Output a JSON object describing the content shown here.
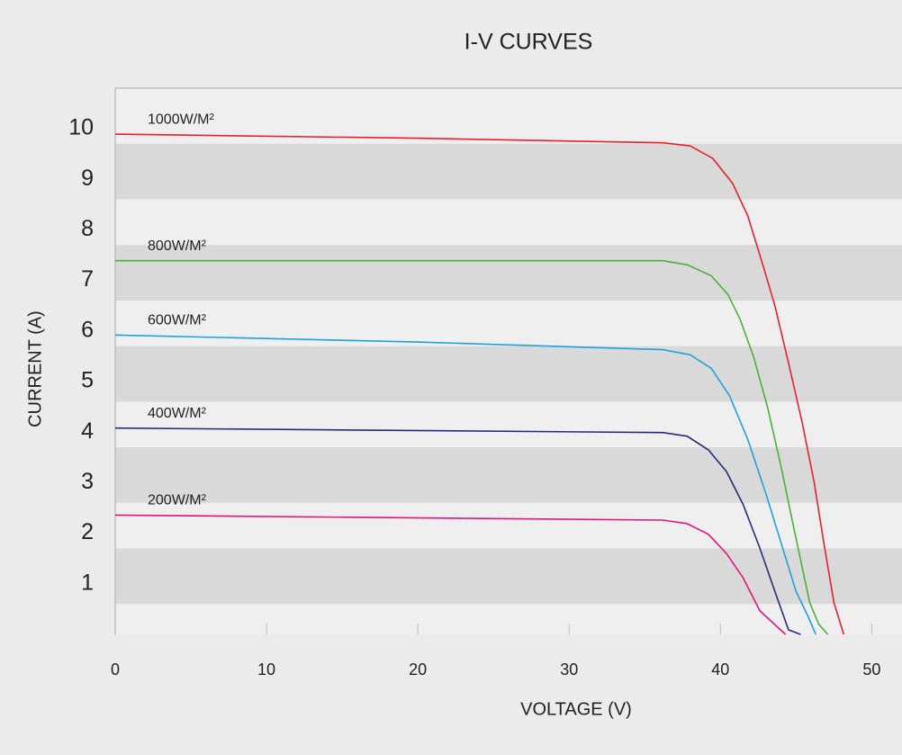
{
  "chart_data": {
    "type": "line",
    "title": "I-V CURVES",
    "x_label": "VOLTAGE (V)",
    "y_label": "CURRENT (A)",
    "xlim": [
      0,
      52
    ],
    "xticks": [
      0,
      10,
      20,
      30,
      40,
      50
    ],
    "ylim": [
      0,
      10.8
    ],
    "yticks": [
      1,
      2,
      3,
      4,
      5,
      6,
      7,
      8,
      9,
      10
    ],
    "series": [
      {
        "name": "1000W/M²",
        "color": "#e8202a",
        "x": [
          0,
          20,
          36.2,
          38,
          39.5,
          40.8,
          41.8,
          42.8,
          43.6,
          44.5,
          45.4,
          46.2,
          46.8,
          47.5,
          48.15
        ],
        "values": [
          9.89,
          9.81,
          9.72,
          9.66,
          9.41,
          8.92,
          8.28,
          7.31,
          6.5,
          5.37,
          4.19,
          3.0,
          1.87,
          0.63,
          0
        ]
      },
      {
        "name": "800W/M²",
        "color": "#4caf3a",
        "x": [
          0,
          36.2,
          37.8,
          39.4,
          40.5,
          41.3,
          42.2,
          43.1,
          44.0,
          44.9,
          45.9,
          46.5,
          47.1
        ],
        "values": [
          7.39,
          7.39,
          7.31,
          7.09,
          6.72,
          6.23,
          5.48,
          4.51,
          3.33,
          2.03,
          0.63,
          0.2,
          0
        ]
      },
      {
        "name": "600W/M²",
        "color": "#1ea0e0",
        "x": [
          0,
          20,
          36.2,
          38,
          39.4,
          40.6,
          41.8,
          43.0,
          44.0,
          45.0,
          45.8,
          46.3
        ],
        "values": [
          5.92,
          5.78,
          5.63,
          5.53,
          5.26,
          4.72,
          3.86,
          2.79,
          1.82,
          0.85,
          0.35,
          0
        ]
      },
      {
        "name": "400W/M²",
        "color": "#2b2a7a",
        "x": [
          0,
          36.2,
          37.8,
          39.2,
          40.4,
          41.5,
          42.6,
          43.6,
          44.5,
          45.3
        ],
        "values": [
          4.08,
          3.99,
          3.92,
          3.65,
          3.22,
          2.57,
          1.71,
          0.85,
          0.09,
          0
        ]
      },
      {
        "name": "200W/M²",
        "color": "#e0157a",
        "x": [
          0,
          36.2,
          37.8,
          39.2,
          40.4,
          41.5,
          42.6,
          44.3
        ],
        "values": [
          2.36,
          2.26,
          2.19,
          1.98,
          1.6,
          1.12,
          0.47,
          0
        ]
      }
    ]
  }
}
